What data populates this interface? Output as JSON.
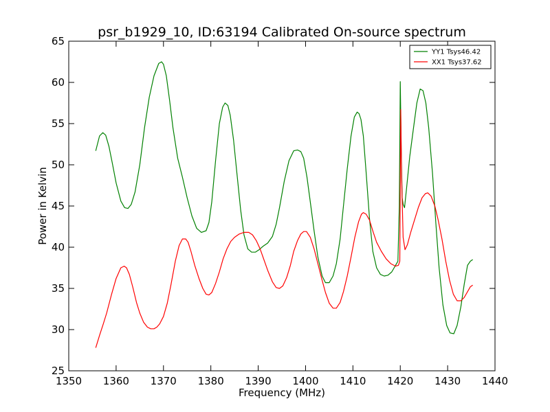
{
  "chart_data": {
    "type": "line",
    "title": "psr_b1929_10, ID:63194 Calibrated On-source spectrum",
    "xlabel": "Frequency (MHz)",
    "ylabel": "Power in Kelvin",
    "xlim": [
      1350,
      1440
    ],
    "ylim": [
      25,
      65
    ],
    "xticks": [
      1350,
      1360,
      1370,
      1380,
      1390,
      1400,
      1410,
      1420,
      1430,
      1440
    ],
    "yticks": [
      25,
      30,
      35,
      40,
      45,
      50,
      55,
      60,
      65
    ],
    "grid": false,
    "legend_position": "top-right",
    "series": [
      {
        "name": "YY1 Tsys46.42",
        "color": "#008000",
        "x": [
          1355.7,
          1356.5,
          1357.2,
          1357.8,
          1358.5,
          1359.2,
          1360.0,
          1361.0,
          1361.8,
          1362.5,
          1363.2,
          1364.0,
          1365.0,
          1366.0,
          1367.0,
          1368.0,
          1369.0,
          1369.6,
          1370.0,
          1370.6,
          1371.3,
          1372.0,
          1373.0,
          1374.0,
          1375.0,
          1376.0,
          1377.0,
          1378.0,
          1379.0,
          1379.6,
          1380.2,
          1381.0,
          1381.8,
          1382.5,
          1383.0,
          1383.6,
          1384.1,
          1384.8,
          1385.5,
          1386.3,
          1387.0,
          1387.8,
          1388.6,
          1389.4,
          1390.2,
          1391.0,
          1392.0,
          1393.0,
          1393.8,
          1394.5,
          1395.5,
          1396.5,
          1397.5,
          1398.3,
          1399.0,
          1399.6,
          1400.3,
          1401.0,
          1401.8,
          1402.6,
          1403.5,
          1404.2,
          1405.0,
          1405.8,
          1406.5,
          1407.3,
          1408.0,
          1408.8,
          1409.6,
          1410.3,
          1410.9,
          1411.3,
          1411.7,
          1412.2,
          1412.8,
          1413.5,
          1414.2,
          1415.0,
          1415.8,
          1416.6,
          1417.4,
          1418.2,
          1419.0,
          1419.5,
          1419.8,
          1420.0,
          1420.2,
          1420.4,
          1420.6,
          1420.9,
          1421.3,
          1422.0,
          1422.8,
          1423.5,
          1424.2,
          1424.8,
          1425.4,
          1426.0,
          1426.8,
          1427.5,
          1428.2,
          1429.0,
          1429.8,
          1430.5,
          1431.3,
          1432.0,
          1432.8,
          1433.5,
          1434.2,
          1434.8,
          1435.3
        ],
        "values": [
          51.7,
          53.5,
          53.9,
          53.6,
          52.2,
          50.2,
          47.8,
          45.6,
          44.8,
          44.7,
          45.2,
          46.7,
          50.0,
          54.5,
          58.2,
          60.8,
          62.3,
          62.5,
          62.2,
          60.8,
          57.8,
          54.5,
          50.8,
          48.5,
          46.0,
          43.8,
          42.3,
          41.8,
          42.0,
          43.0,
          45.5,
          50.5,
          55.0,
          57.0,
          57.5,
          57.2,
          56.0,
          53.0,
          49.0,
          44.5,
          41.5,
          39.8,
          39.4,
          39.4,
          39.7,
          40.1,
          40.5,
          41.3,
          42.8,
          44.8,
          48.0,
          50.5,
          51.7,
          51.8,
          51.6,
          50.8,
          48.5,
          45.5,
          42.0,
          38.8,
          36.5,
          35.7,
          35.7,
          36.5,
          38.0,
          41.0,
          45.0,
          49.5,
          53.5,
          55.8,
          56.4,
          56.2,
          55.5,
          53.5,
          49.0,
          43.5,
          39.5,
          37.5,
          36.7,
          36.5,
          36.6,
          37.0,
          37.8,
          38.3,
          45.0,
          60.1,
          52.0,
          46.0,
          45.2,
          44.8,
          47.0,
          51.0,
          54.5,
          57.5,
          59.2,
          59.0,
          57.5,
          54.5,
          49.0,
          43.0,
          37.5,
          33.0,
          30.5,
          29.6,
          29.5,
          30.5,
          32.8,
          35.5,
          37.8,
          38.3,
          38.5
        ]
      },
      {
        "name": "XX1 Tsys37.62",
        "color": "#ff0000",
        "x": [
          1355.7,
          1356.5,
          1357.3,
          1358.0,
          1359.0,
          1360.0,
          1361.0,
          1361.7,
          1362.2,
          1362.8,
          1363.5,
          1364.3,
          1365.0,
          1365.8,
          1366.6,
          1367.3,
          1368.0,
          1368.6,
          1369.2,
          1370.0,
          1370.8,
          1371.6,
          1372.5,
          1373.3,
          1374.0,
          1374.7,
          1375.2,
          1375.8,
          1376.6,
          1377.5,
          1378.3,
          1379.0,
          1379.6,
          1380.2,
          1381.0,
          1381.8,
          1382.6,
          1383.4,
          1384.2,
          1385.0,
          1386.0,
          1387.0,
          1388.0,
          1388.8,
          1389.6,
          1390.4,
          1391.2,
          1392.0,
          1393.0,
          1393.8,
          1394.5,
          1395.2,
          1396.0,
          1396.8,
          1397.5,
          1398.3,
          1399.0,
          1399.6,
          1400.2,
          1401.0,
          1401.8,
          1402.6,
          1403.4,
          1404.2,
          1405.0,
          1405.8,
          1406.5,
          1407.3,
          1408.0,
          1408.8,
          1409.6,
          1410.4,
          1411.2,
          1411.8,
          1412.2,
          1412.8,
          1413.5,
          1414.3,
          1415.0,
          1416.0,
          1417.0,
          1418.0,
          1419.0,
          1419.6,
          1419.9,
          1420.1,
          1420.3,
          1420.6,
          1421.0,
          1421.5,
          1422.2,
          1423.0,
          1423.8,
          1424.6,
          1425.3,
          1425.8,
          1426.5,
          1427.3,
          1428.0,
          1428.8,
          1429.6,
          1430.4,
          1431.2,
          1432.0,
          1432.8,
          1433.5,
          1434.2,
          1434.8,
          1435.3
        ],
        "values": [
          27.8,
          29.3,
          30.7,
          32.0,
          34.2,
          36.2,
          37.5,
          37.7,
          37.5,
          36.7,
          35.2,
          33.3,
          32.0,
          30.9,
          30.3,
          30.1,
          30.1,
          30.3,
          30.7,
          31.6,
          33.2,
          35.5,
          38.3,
          40.2,
          41.0,
          41.0,
          40.6,
          39.5,
          37.8,
          36.2,
          35.0,
          34.3,
          34.2,
          34.5,
          35.6,
          37.0,
          38.6,
          39.8,
          40.7,
          41.2,
          41.6,
          41.8,
          41.8,
          41.5,
          40.8,
          39.8,
          38.5,
          37.2,
          35.8,
          35.1,
          35.0,
          35.3,
          36.3,
          37.8,
          39.5,
          40.8,
          41.6,
          41.9,
          41.9,
          41.2,
          39.8,
          38.0,
          36.2,
          34.5,
          33.2,
          32.6,
          32.6,
          33.3,
          34.6,
          36.5,
          38.8,
          41.2,
          43.1,
          44.0,
          44.2,
          44.0,
          43.3,
          41.8,
          40.6,
          39.5,
          38.6,
          38.0,
          37.7,
          37.8,
          38.3,
          56.7,
          48.0,
          41.2,
          39.7,
          40.3,
          41.8,
          43.3,
          44.8,
          46.0,
          46.5,
          46.6,
          46.2,
          45.0,
          43.3,
          41.0,
          38.3,
          36.0,
          34.3,
          33.5,
          33.5,
          33.9,
          34.6,
          35.2,
          35.4
        ]
      }
    ]
  }
}
